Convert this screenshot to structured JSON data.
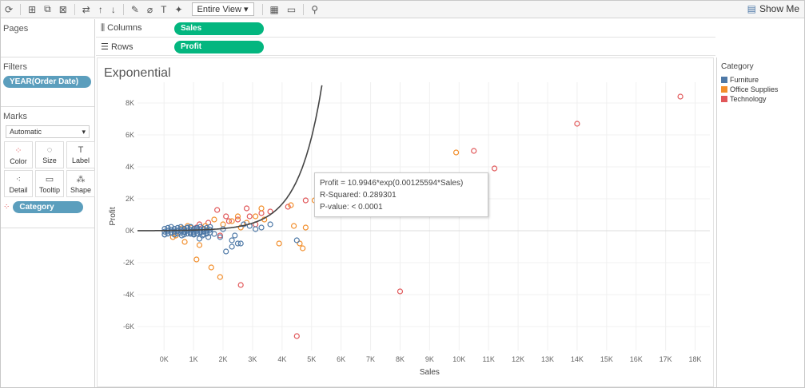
{
  "toolbar": {
    "view_select": "Entire View",
    "show_me": "Show Me"
  },
  "panes": {
    "pages": "Pages",
    "filters": "Filters",
    "filter_pill": "YEAR(Order Date)",
    "marks": "Marks",
    "mark_type": "Automatic",
    "mark_buttons": [
      "Color",
      "Size",
      "Label",
      "Detail",
      "Tooltip",
      "Shape"
    ],
    "category_pill": "Category"
  },
  "shelves": {
    "columns_label": "Columns",
    "columns_pill": "Sales",
    "rows_label": "Rows",
    "rows_pill": "Profit"
  },
  "legend": {
    "title": "Category",
    "items": [
      "Furniture",
      "Office Supplies",
      "Technology"
    ]
  },
  "colors": {
    "Furniture": "#4e79a7",
    "Office Supplies": "#f28e2b",
    "Technology": "#e15759",
    "pill_green": "#03b67f",
    "pill_blue": "#5b9ebd"
  },
  "tooltip": {
    "line1": "Profit = 10.9946*exp(0.00125594*Sales)",
    "line2": "R-Squared: 0.289301",
    "line3": "P-value: < 0.0001"
  },
  "chart_data": {
    "type": "scatter",
    "title": "Exponential",
    "xlabel": "Sales",
    "ylabel": "Profit",
    "xlim": [
      -900,
      18500
    ],
    "ylim": [
      -7500,
      9300
    ],
    "x_ticks": [
      0,
      1000,
      2000,
      3000,
      4000,
      5000,
      6000,
      7000,
      8000,
      9000,
      10000,
      11000,
      12000,
      13000,
      14000,
      15000,
      16000,
      17000,
      18000
    ],
    "x_tick_labels": [
      "0K",
      "1K",
      "2K",
      "3K",
      "4K",
      "5K",
      "6K",
      "7K",
      "8K",
      "9K",
      "10K",
      "11K",
      "12K",
      "13K",
      "14K",
      "15K",
      "16K",
      "17K",
      "18K"
    ],
    "y_ticks": [
      -6000,
      -4000,
      -2000,
      0,
      2000,
      4000,
      6000,
      8000
    ],
    "y_tick_labels": [
      "-6K",
      "-4K",
      "-2K",
      "0K",
      "2K",
      "4K",
      "6K",
      "8K"
    ],
    "trend": {
      "model": "exponential",
      "a": 10.9946,
      "b": 0.00125594
    },
    "series": [
      {
        "name": "Technology",
        "points": [
          [
            17500,
            8400
          ],
          [
            14000,
            6700
          ],
          [
            10500,
            5000
          ],
          [
            11200,
            3900
          ],
          [
            8000,
            -3800
          ],
          [
            4500,
            -6600
          ],
          [
            4800,
            1900
          ],
          [
            3600,
            1200
          ],
          [
            2800,
            1400
          ],
          [
            2100,
            900
          ],
          [
            1800,
            1300
          ],
          [
            2600,
            -3400
          ],
          [
            3300,
            1100
          ],
          [
            4200,
            1500
          ],
          [
            2500,
            700
          ],
          [
            1500,
            500
          ],
          [
            1200,
            400
          ],
          [
            2900,
            900
          ],
          [
            3100,
            400
          ],
          [
            1900,
            -300
          ],
          [
            2200,
            600
          ],
          [
            1100,
            200
          ]
        ]
      },
      {
        "name": "Office Supplies",
        "points": [
          [
            9900,
            4900
          ],
          [
            5100,
            1900
          ],
          [
            4300,
            1600
          ],
          [
            3900,
            -800
          ],
          [
            4600,
            -800
          ],
          [
            4700,
            -1100
          ],
          [
            4400,
            300
          ],
          [
            4800,
            200
          ],
          [
            3300,
            1400
          ],
          [
            3100,
            900
          ],
          [
            2300,
            600
          ],
          [
            1600,
            -2300
          ],
          [
            1900,
            -2900
          ],
          [
            1100,
            -1800
          ],
          [
            2800,
            500
          ],
          [
            2000,
            400
          ],
          [
            1400,
            300
          ],
          [
            900,
            200
          ],
          [
            600,
            150
          ],
          [
            400,
            -300
          ],
          [
            700,
            -700
          ],
          [
            300,
            -400
          ],
          [
            2500,
            900
          ],
          [
            3400,
            700
          ],
          [
            1200,
            -900
          ],
          [
            800,
            300
          ],
          [
            1700,
            700
          ],
          [
            2600,
            200
          ]
        ]
      },
      {
        "name": "Furniture",
        "points": [
          [
            4500,
            -600
          ],
          [
            3300,
            200
          ],
          [
            3600,
            400
          ],
          [
            2900,
            300
          ],
          [
            2400,
            -300
          ],
          [
            2500,
            -800
          ],
          [
            2300,
            -600
          ],
          [
            1700,
            -200
          ],
          [
            2300,
            -1000
          ],
          [
            2100,
            -1300
          ],
          [
            2600,
            -800
          ],
          [
            3100,
            100
          ],
          [
            1500,
            -400
          ],
          [
            1300,
            -300
          ],
          [
            1900,
            -400
          ],
          [
            900,
            -200
          ],
          [
            700,
            -100
          ],
          [
            1100,
            100
          ],
          [
            800,
            200
          ],
          [
            2000,
            100
          ],
          [
            2700,
            400
          ],
          [
            600,
            -300
          ],
          [
            1000,
            -200
          ],
          [
            1200,
            -500
          ]
        ]
      }
    ]
  }
}
